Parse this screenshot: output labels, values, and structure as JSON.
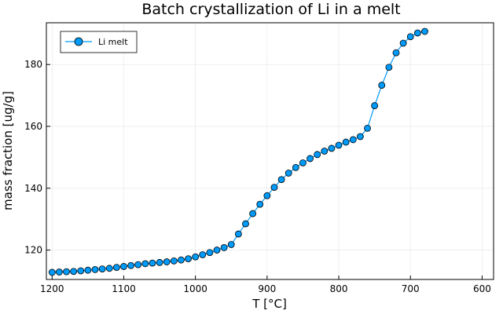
{
  "chart_data": {
    "type": "line",
    "title": "Batch crystallization of Li in a melt",
    "xlabel": "T [°C]",
    "ylabel": "mass fraction [ug/g]",
    "x_reversed": true,
    "xlim": [
      1208,
      584
    ],
    "ylim": [
      110.5,
      193.5
    ],
    "xticks": [
      1200,
      1100,
      1000,
      900,
      800,
      700,
      600
    ],
    "yticks": [
      120,
      140,
      160,
      180
    ],
    "grid": true,
    "legend_position": "top-left",
    "line_color": "#009af9",
    "marker_color": "#009af9",
    "series": [
      {
        "name": "Li melt",
        "x": [
          1200,
          1190,
          1180,
          1170,
          1160,
          1150,
          1140,
          1130,
          1120,
          1110,
          1100,
          1090,
          1080,
          1070,
          1060,
          1050,
          1040,
          1030,
          1020,
          1010,
          1000,
          990,
          980,
          970,
          960,
          950,
          940,
          930,
          920,
          910,
          900,
          890,
          880,
          870,
          860,
          850,
          840,
          830,
          820,
          810,
          800,
          790,
          780,
          770,
          760,
          750,
          740,
          730,
          720,
          710,
          700,
          690,
          680
        ],
        "y": [
          112.8,
          112.9,
          113.0,
          113.1,
          113.3,
          113.5,
          113.7,
          113.9,
          114.1,
          114.4,
          114.7,
          115.0,
          115.3,
          115.6,
          115.8,
          116.0,
          116.2,
          116.5,
          116.8,
          117.2,
          117.8,
          118.5,
          119.2,
          120.0,
          120.8,
          121.8,
          125.2,
          128.5,
          131.8,
          134.8,
          137.6,
          140.3,
          142.8,
          144.9,
          146.7,
          148.2,
          149.6,
          150.9,
          152.0,
          152.9,
          153.9,
          154.9,
          155.7,
          156.7,
          159.4,
          166.7,
          173.3,
          179.1,
          183.8,
          186.9,
          189.0,
          190.2,
          190.7
        ]
      }
    ]
  }
}
